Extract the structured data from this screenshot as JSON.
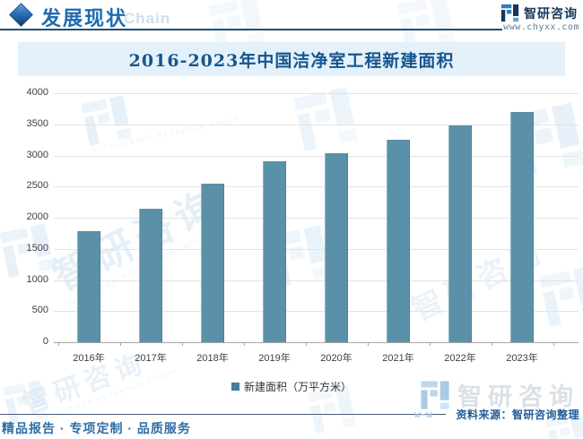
{
  "header": {
    "title": "发展现状",
    "title_watermark": "Chain",
    "brand": "智研咨询",
    "website": "www.chyxx.com"
  },
  "chart_data": {
    "type": "bar",
    "title": "2016-2023年中国洁净室工程新建面积",
    "categories": [
      "2016年",
      "2017年",
      "2018年",
      "2019年",
      "2020年",
      "2021年",
      "2022年",
      "2023年"
    ],
    "values": [
      1780,
      2150,
      2540,
      2900,
      3040,
      3250,
      3480,
      3700
    ],
    "ylim": [
      0,
      4000
    ],
    "ytick_step": 500,
    "grid": true,
    "bar_color": "#5b91a8",
    "legend": [
      "新建面积（万平方米）"
    ],
    "legend_position": "bottom"
  },
  "watermark": {
    "brand": "智研咨询",
    "caption": "INTELLIGENCE RESEARCH GROUP",
    "partial_url": "w-w"
  },
  "footer": {
    "source": "资料来源：智研咨询整理",
    "services": "精品报告 · 专项定制 · 品质服务"
  },
  "colors": {
    "accent_blue": "#1e6cb0",
    "navy": "#16365c",
    "band_bg": "#e4f1fa",
    "title_text": "#15568f",
    "bar": "#5b91a8",
    "gridline": "#e3e3e3",
    "source_text": "#1f5c99",
    "services_text": "#2e6da4",
    "watermark_blue": "#c7ddef"
  }
}
